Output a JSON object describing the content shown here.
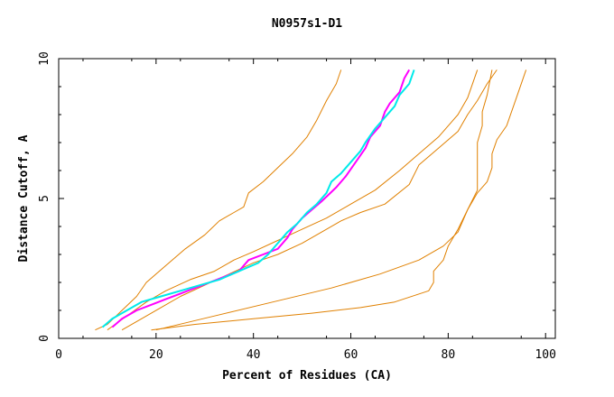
{
  "chart_data": {
    "type": "line",
    "title": "N0957s1-D1",
    "xlabel": "Percent of Residues (CA)",
    "ylabel": "Distance Cutoff, A",
    "xlim": [
      0,
      102
    ],
    "ylim": [
      0,
      10
    ],
    "xticks": [
      0,
      20,
      40,
      60,
      80,
      100
    ],
    "yticks": [
      0,
      5,
      10
    ],
    "grid": false,
    "series": [
      {
        "name": "orange-1",
        "color": "#e08000",
        "width": 1,
        "points": [
          [
            7.5,
            0.3
          ],
          [
            10,
            0.5
          ],
          [
            13,
            1.0
          ],
          [
            16,
            1.5
          ],
          [
            18,
            2.0
          ],
          [
            22,
            2.6
          ],
          [
            26,
            3.2
          ],
          [
            30,
            3.7
          ],
          [
            33,
            4.2
          ],
          [
            36,
            4.5
          ],
          [
            38,
            4.7
          ],
          [
            39,
            5.2
          ],
          [
            42,
            5.6
          ],
          [
            45,
            6.1
          ],
          [
            48,
            6.6
          ],
          [
            51,
            7.2
          ],
          [
            53,
            7.8
          ],
          [
            55,
            8.5
          ],
          [
            57,
            9.1
          ],
          [
            58,
            9.6
          ]
        ]
      },
      {
        "name": "orange-2",
        "color": "#e08000",
        "width": 1,
        "points": [
          [
            10,
            0.3
          ],
          [
            14,
            0.8
          ],
          [
            18,
            1.3
          ],
          [
            22,
            1.7
          ],
          [
            27,
            2.1
          ],
          [
            32,
            2.4
          ],
          [
            36,
            2.8
          ],
          [
            40,
            3.1
          ],
          [
            45,
            3.5
          ],
          [
            50,
            3.9
          ],
          [
            55,
            4.3
          ],
          [
            60,
            4.8
          ],
          [
            65,
            5.3
          ],
          [
            70,
            6.0
          ],
          [
            74,
            6.6
          ],
          [
            78,
            7.2
          ],
          [
            80,
            7.6
          ],
          [
            82,
            8.0
          ],
          [
            84,
            8.6
          ],
          [
            86,
            9.6
          ]
        ]
      },
      {
        "name": "orange-3",
        "color": "#e08000",
        "width": 1,
        "points": [
          [
            13,
            0.3
          ],
          [
            17,
            0.7
          ],
          [
            21,
            1.1
          ],
          [
            25,
            1.5
          ],
          [
            30,
            1.9
          ],
          [
            35,
            2.3
          ],
          [
            40,
            2.7
          ],
          [
            45,
            3.0
          ],
          [
            50,
            3.4
          ],
          [
            54,
            3.8
          ],
          [
            58,
            4.2
          ],
          [
            62,
            4.5
          ],
          [
            67,
            4.8
          ],
          [
            72,
            5.5
          ],
          [
            74,
            6.2
          ],
          [
            78,
            6.8
          ],
          [
            82,
            7.4
          ],
          [
            84,
            8.0
          ],
          [
            86,
            8.5
          ],
          [
            88,
            9.1
          ],
          [
            90,
            9.6
          ]
        ]
      },
      {
        "name": "orange-4",
        "color": "#e08000",
        "width": 1,
        "points": [
          [
            20,
            0.3
          ],
          [
            32,
            0.8
          ],
          [
            44,
            1.3
          ],
          [
            56,
            1.8
          ],
          [
            66,
            2.3
          ],
          [
            74,
            2.8
          ],
          [
            79,
            3.3
          ],
          [
            82,
            3.8
          ],
          [
            84,
            4.6
          ],
          [
            86,
            5.3
          ],
          [
            86,
            5.8
          ],
          [
            86,
            6.3
          ],
          [
            86,
            7.0
          ],
          [
            87,
            7.6
          ],
          [
            87,
            8.1
          ],
          [
            88,
            8.7
          ],
          [
            89,
            9.6
          ]
        ]
      },
      {
        "name": "orange-5",
        "color": "#e08000",
        "width": 1,
        "points": [
          [
            19,
            0.3
          ],
          [
            28,
            0.5
          ],
          [
            40,
            0.7
          ],
          [
            52,
            0.9
          ],
          [
            62,
            1.1
          ],
          [
            69,
            1.3
          ],
          [
            76,
            1.7
          ],
          [
            77,
            2.0
          ],
          [
            77,
            2.4
          ],
          [
            79,
            2.8
          ],
          [
            80,
            3.3
          ],
          [
            82,
            3.9
          ],
          [
            84,
            4.6
          ],
          [
            86,
            5.2
          ],
          [
            88,
            5.6
          ],
          [
            89,
            6.1
          ],
          [
            89,
            6.6
          ],
          [
            90,
            7.1
          ],
          [
            92,
            7.6
          ],
          [
            94,
            8.6
          ],
          [
            96,
            9.6
          ]
        ]
      },
      {
        "name": "magenta",
        "color": "#ff00ff",
        "width": 2,
        "points": [
          [
            11,
            0.4
          ],
          [
            13,
            0.7
          ],
          [
            16,
            1.0
          ],
          [
            19,
            1.2
          ],
          [
            22,
            1.4
          ],
          [
            25,
            1.6
          ],
          [
            28,
            1.8
          ],
          [
            31,
            2.0
          ],
          [
            34,
            2.2
          ],
          [
            37,
            2.4
          ],
          [
            39,
            2.8
          ],
          [
            42,
            3.0
          ],
          [
            45,
            3.2
          ],
          [
            47,
            3.6
          ],
          [
            48,
            3.9
          ],
          [
            50,
            4.3
          ],
          [
            52,
            4.6
          ],
          [
            54,
            4.9
          ],
          [
            57,
            5.4
          ],
          [
            59,
            5.8
          ],
          [
            61,
            6.3
          ],
          [
            63,
            6.8
          ],
          [
            64,
            7.2
          ],
          [
            66,
            7.6
          ],
          [
            67,
            8.1
          ],
          [
            68,
            8.4
          ],
          [
            70,
            8.8
          ],
          [
            71,
            9.3
          ],
          [
            72,
            9.6
          ]
        ]
      },
      {
        "name": "cyan",
        "color": "#00eaea",
        "width": 2,
        "points": [
          [
            9,
            0.4
          ],
          [
            11,
            0.7
          ],
          [
            14,
            1.0
          ],
          [
            17,
            1.3
          ],
          [
            21,
            1.5
          ],
          [
            25,
            1.7
          ],
          [
            29,
            1.9
          ],
          [
            33,
            2.1
          ],
          [
            37,
            2.4
          ],
          [
            41,
            2.7
          ],
          [
            43,
            3.0
          ],
          [
            45,
            3.4
          ],
          [
            47,
            3.8
          ],
          [
            49,
            4.1
          ],
          [
            51,
            4.5
          ],
          [
            53,
            4.8
          ],
          [
            55,
            5.2
          ],
          [
            56,
            5.6
          ],
          [
            58,
            5.9
          ],
          [
            60,
            6.3
          ],
          [
            62,
            6.7
          ],
          [
            63,
            7.0
          ],
          [
            65,
            7.5
          ],
          [
            67,
            7.9
          ],
          [
            69,
            8.3
          ],
          [
            70,
            8.7
          ],
          [
            72,
            9.1
          ],
          [
            73,
            9.6
          ]
        ]
      }
    ]
  }
}
